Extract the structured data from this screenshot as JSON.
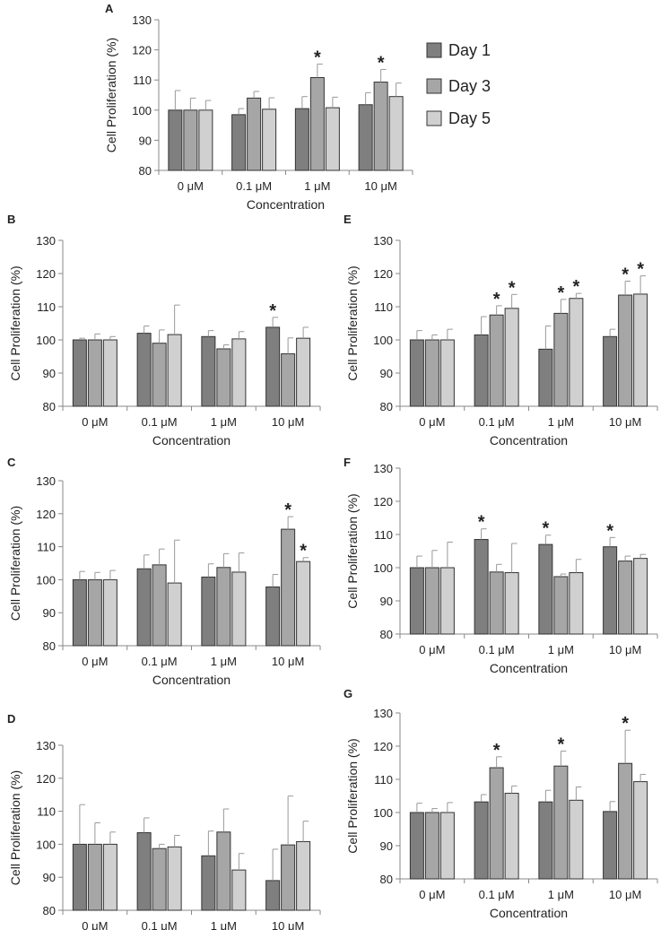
{
  "legend": {
    "entries": [
      "Day 1",
      "Day 3",
      "Day 5"
    ],
    "colors": [
      "#7f7f7f",
      "#a6a6a6",
      "#d0d0d0"
    ]
  },
  "chart_data": [
    {
      "panel": "A",
      "type": "bar",
      "title": "",
      "xlabel": "Concentration",
      "ylabel": "Cell Proliferation (%)",
      "ylim": [
        80,
        130
      ],
      "yticks": [
        80,
        90,
        100,
        110,
        120,
        130
      ],
      "categories": [
        "0 μM",
        "0.1 μM",
        "1 μM",
        "10 μM"
      ],
      "series": [
        {
          "name": "Day 1",
          "values": [
            100,
            98.5,
            100.5,
            101.8
          ],
          "errors": [
            6.5,
            2,
            4,
            4
          ]
        },
        {
          "name": "Day 3",
          "values": [
            100,
            104,
            110.8,
            109.3
          ],
          "errors": [
            4,
            2.2,
            4.5,
            4.2
          ]
        },
        {
          "name": "Day 5",
          "values": [
            100,
            100.3,
            100.8,
            104.5
          ],
          "errors": [
            3.2,
            3.8,
            3.5,
            4.5
          ]
        }
      ],
      "significant": [
        [
          false,
          false,
          false
        ],
        [
          false,
          false,
          false
        ],
        [
          false,
          true,
          false
        ],
        [
          false,
          true,
          false
        ]
      ],
      "sig_marker": "*"
    },
    {
      "panel": "B",
      "type": "bar",
      "title": "",
      "xlabel": "Concentration",
      "ylabel": "Cell Proliferation (%)",
      "ylim": [
        80,
        130
      ],
      "yticks": [
        80,
        90,
        100,
        110,
        120,
        130
      ],
      "categories": [
        "0 μM",
        "0.1 μM",
        "1 μM",
        "10 μM"
      ],
      "series": [
        {
          "name": "Day 1",
          "values": [
            100,
            102,
            101,
            103.8
          ],
          "errors": [
            0.5,
            2.2,
            1.8,
            3
          ]
        },
        {
          "name": "Day 3",
          "values": [
            100,
            99,
            97.3,
            95.8
          ],
          "errors": [
            1.8,
            4,
            1.2,
            4.8
          ]
        },
        {
          "name": "Day 5",
          "values": [
            100,
            101.6,
            100.3,
            100.5
          ],
          "errors": [
            1,
            8.9,
            2.2,
            3.3
          ]
        }
      ],
      "significant": [
        [
          false,
          false,
          false
        ],
        [
          false,
          false,
          false
        ],
        [
          false,
          false,
          false
        ],
        [
          true,
          false,
          false
        ]
      ],
      "sig_marker": "*"
    },
    {
      "panel": "C",
      "type": "bar",
      "title": "",
      "xlabel": "Concentration",
      "ylabel": "Cell Proliferation (%)",
      "ylim": [
        80,
        130
      ],
      "yticks": [
        80,
        90,
        100,
        110,
        120,
        130
      ],
      "categories": [
        "0 μM",
        "0.1 μM",
        "1 μM",
        "10 μM"
      ],
      "series": [
        {
          "name": "Day 1",
          "values": [
            100,
            103.3,
            100.8,
            97.8
          ],
          "errors": [
            2.5,
            4.2,
            4,
            3.8
          ]
        },
        {
          "name": "Day 3",
          "values": [
            100,
            104.5,
            103.7,
            115.3
          ],
          "errors": [
            2.2,
            4.8,
            4.2,
            3.8
          ]
        },
        {
          "name": "Day 5",
          "values": [
            100,
            99,
            102.3,
            105.5
          ],
          "errors": [
            2.8,
            13,
            5.8,
            1.2
          ]
        }
      ],
      "significant": [
        [
          false,
          false,
          false
        ],
        [
          false,
          false,
          false
        ],
        [
          false,
          false,
          false
        ],
        [
          false,
          true,
          true
        ]
      ],
      "sig_marker": "*"
    },
    {
      "panel": "D",
      "type": "bar",
      "title": "",
      "xlabel": "Concentration",
      "ylabel": "Cell Proliferation (%)",
      "ylim": [
        80,
        130
      ],
      "yticks": [
        80,
        90,
        100,
        110,
        120,
        130
      ],
      "categories": [
        "0 μM",
        "0.1 μM",
        "1 μM",
        "10 μM"
      ],
      "series": [
        {
          "name": "Day 1",
          "values": [
            100,
            103.5,
            96.5,
            89
          ],
          "errors": [
            12,
            4.5,
            7.5,
            9.5
          ]
        },
        {
          "name": "Day 3",
          "values": [
            100,
            98.7,
            103.7,
            99.8
          ],
          "errors": [
            6.5,
            1.3,
            7,
            14.8
          ]
        },
        {
          "name": "Day 5",
          "values": [
            100,
            99.2,
            92.2,
            100.8
          ],
          "errors": [
            3.7,
            3.5,
            5,
            6.2
          ]
        }
      ],
      "significant": [
        [
          false,
          false,
          false
        ],
        [
          false,
          false,
          false
        ],
        [
          false,
          false,
          false
        ],
        [
          false,
          false,
          false
        ]
      ],
      "sig_marker": "*"
    },
    {
      "panel": "E",
      "type": "bar",
      "title": "",
      "xlabel": "Concentration",
      "ylabel": "Cell Proliferation (%)",
      "ylim": [
        80,
        130
      ],
      "yticks": [
        80,
        90,
        100,
        110,
        120,
        130
      ],
      "categories": [
        "0 μM",
        "0.1 μM",
        "1 μM",
        "10 μM"
      ],
      "series": [
        {
          "name": "Day 1",
          "values": [
            100,
            101.5,
            97.2,
            101
          ],
          "errors": [
            2.8,
            5.5,
            7,
            2.2
          ]
        },
        {
          "name": "Day 3",
          "values": [
            100,
            107.5,
            108,
            113.5
          ],
          "errors": [
            1.5,
            2.8,
            4.2,
            4.2
          ]
        },
        {
          "name": "Day 5",
          "values": [
            100,
            109.5,
            112.5,
            113.8
          ],
          "errors": [
            3.2,
            4.2,
            1.5,
            5.5
          ]
        }
      ],
      "significant": [
        [
          false,
          false,
          false
        ],
        [
          false,
          true,
          true
        ],
        [
          false,
          true,
          true
        ],
        [
          false,
          true,
          true
        ]
      ],
      "sig_marker": "*"
    },
    {
      "panel": "F",
      "type": "bar",
      "title": "",
      "xlabel": "Concentration",
      "ylabel": "Cell Proliferation (%)",
      "ylim": [
        80,
        130
      ],
      "yticks": [
        80,
        90,
        100,
        110,
        120,
        130
      ],
      "categories": [
        "0 μM",
        "0.1 μM",
        "1 μM",
        "10 μM"
      ],
      "series": [
        {
          "name": "Day 1",
          "values": [
            100,
            108.5,
            107,
            106.3
          ],
          "errors": [
            3.5,
            3.2,
            2.8,
            2.8
          ]
        },
        {
          "name": "Day 3",
          "values": [
            100,
            98.7,
            97.3,
            102
          ],
          "errors": [
            5.2,
            2.3,
            0.8,
            1.5
          ]
        },
        {
          "name": "Day 5",
          "values": [
            100,
            98.5,
            98.5,
            102.8
          ],
          "errors": [
            7.7,
            8.8,
            4,
            1.2
          ]
        }
      ],
      "significant": [
        [
          false,
          false,
          false
        ],
        [
          true,
          false,
          false
        ],
        [
          true,
          false,
          false
        ],
        [
          true,
          false,
          false
        ]
      ],
      "sig_marker": "*"
    },
    {
      "panel": "G",
      "type": "bar",
      "title": "",
      "xlabel": "Concentration",
      "ylabel": "Cell Proliferation (%)",
      "ylim": [
        80,
        130
      ],
      "yticks": [
        80,
        90,
        100,
        110,
        120,
        130
      ],
      "categories": [
        "0 μM",
        "0.1 μM",
        "1 μM",
        "10 μM"
      ],
      "series": [
        {
          "name": "Day 1",
          "values": [
            100,
            103.2,
            103.2,
            100.3
          ],
          "errors": [
            2.8,
            2.2,
            3.5,
            3
          ]
        },
        {
          "name": "Day 3",
          "values": [
            100,
            113.5,
            114,
            114.8
          ],
          "errors": [
            1.2,
            3.3,
            4.5,
            10
          ]
        },
        {
          "name": "Day 5",
          "values": [
            100,
            105.8,
            103.7,
            109.3
          ],
          "errors": [
            3,
            2.2,
            4,
            2.2
          ]
        }
      ],
      "significant": [
        [
          false,
          false,
          false
        ],
        [
          false,
          true,
          false
        ],
        [
          false,
          true,
          false
        ],
        [
          false,
          true,
          false
        ]
      ],
      "sig_marker": "*"
    }
  ]
}
